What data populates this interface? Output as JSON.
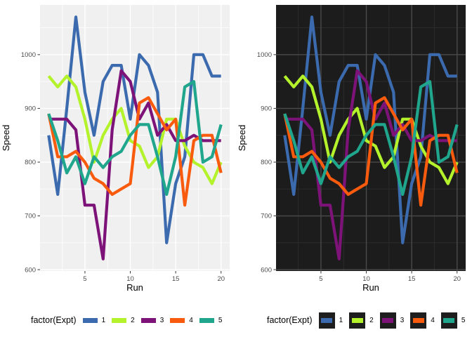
{
  "figures": [
    {
      "name": "light-theme-plot",
      "theme": {
        "panel_bg": "#F0F0F0",
        "grid_major": "#FFFFFF",
        "grid_minor": "rgba(255,255,255,0.75)",
        "axis_text": "#4D4D4D",
        "axis_title": "#000000",
        "tick": "#333333",
        "legend_key_bg": "transparent",
        "legend_text": "#000000"
      }
    },
    {
      "name": "dark-theme-plot",
      "theme": {
        "panel_bg": "#1C1C1C",
        "grid_major": "#4A4A4A",
        "grid_minor": "#2B2B2B",
        "axis_text": "#4D4D4D",
        "axis_title": "#000000",
        "tick": "#333333",
        "legend_key_bg": "#1E1E1E",
        "legend_text": "#000000"
      }
    }
  ],
  "chart_data": {
    "type": "line",
    "title": "",
    "xlabel": "Run",
    "ylabel": "Speed",
    "legend_title": "factor(Expt)",
    "legend_position": "bottom",
    "grid": true,
    "x": [
      1,
      2,
      3,
      4,
      5,
      6,
      7,
      8,
      9,
      10,
      11,
      12,
      13,
      14,
      15,
      16,
      17,
      18,
      19,
      20
    ],
    "x_ticks": [
      5,
      10,
      15,
      20
    ],
    "x_minor_ticks": [
      2.5,
      7.5,
      12.5,
      17.5
    ],
    "y_ticks": [
      600,
      700,
      800,
      900,
      1000
    ],
    "y_minor_ticks": [
      650,
      750,
      850,
      950,
      1050
    ],
    "xlim": [
      0.05,
      20.95
    ],
    "ylim": [
      597.5,
      1092.5
    ],
    "series": [
      {
        "name": "1",
        "color": "#3B6BAE",
        "values": [
          850,
          740,
          900,
          1070,
          930,
          850,
          950,
          980,
          980,
          880,
          1000,
          980,
          930,
          650,
          760,
          810,
          1000,
          1000,
          960,
          960
        ]
      },
      {
        "name": "2",
        "color": "#B4F32C",
        "values": [
          960,
          940,
          960,
          940,
          880,
          800,
          850,
          880,
          900,
          840,
          830,
          790,
          810,
          880,
          880,
          830,
          800,
          790,
          760,
          800
        ]
      },
      {
        "name": "3",
        "color": "#7D1378",
        "values": [
          880,
          880,
          880,
          860,
          720,
          720,
          620,
          860,
          970,
          950,
          880,
          910,
          850,
          870,
          840,
          840,
          850,
          840,
          840,
          840
        ]
      },
      {
        "name": "4",
        "color": "#F95B0E",
        "values": [
          890,
          810,
          810,
          820,
          800,
          770,
          760,
          740,
          750,
          760,
          910,
          920,
          890,
          860,
          880,
          720,
          840,
          850,
          850,
          780
        ]
      },
      {
        "name": "5",
        "color": "#1FA68C",
        "values": [
          890,
          840,
          780,
          810,
          760,
          810,
          790,
          810,
          820,
          850,
          870,
          870,
          810,
          740,
          810,
          940,
          950,
          800,
          810,
          870
        ]
      }
    ]
  }
}
